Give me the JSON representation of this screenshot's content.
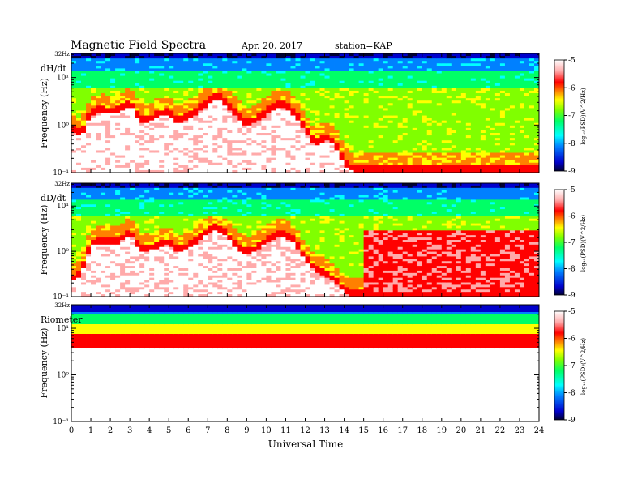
{
  "header": {
    "title": "Magnetic Field Spectra",
    "date": "Apr. 20, 2017",
    "station": "station=KAP"
  },
  "colors": {
    "colormap": [
      "#000033",
      "#0000cc",
      "#0080ff",
      "#00ffff",
      "#00ff66",
      "#80ff00",
      "#ffff00",
      "#ff8000",
      "#ff0000",
      "#ffaaaa",
      "#ffffff"
    ],
    "axis": "#000000",
    "background": "#ffffff"
  },
  "chart_data": [
    {
      "type": "heatmap",
      "panel_label": "dH/dt",
      "ylabel": "Frequency (Hz)",
      "y_scale": "log",
      "ylim": [
        0.1,
        32
      ],
      "y_top_label": "32Hz",
      "y_ticks": [
        {
          "value": 10,
          "label": "10¹"
        },
        {
          "value": 1,
          "label": "10⁰"
        },
        {
          "value": 0.1,
          "label": "10⁻¹"
        }
      ],
      "xlim": [
        0,
        24
      ],
      "colorbar": {
        "label": "log₁₀(PSD)(V^2/Hz)",
        "range": [
          -9,
          -5
        ],
        "ticks": [
          -5,
          -6,
          -7,
          -8,
          -9
        ]
      },
      "quiet_zone_boundary_hz": [
        [
          0.0,
          0.75
        ],
        [
          0.5,
          0.55
        ],
        [
          1.0,
          1.6
        ],
        [
          1.5,
          1.8
        ],
        [
          2.0,
          1.7
        ],
        [
          2.5,
          1.8
        ],
        [
          3.0,
          2.6
        ],
        [
          3.5,
          1.2
        ],
        [
          4.0,
          1.1
        ],
        [
          4.5,
          1.5
        ],
        [
          5.0,
          1.6
        ],
        [
          5.5,
          1.0
        ],
        [
          6.0,
          1.3
        ],
        [
          6.5,
          1.8
        ],
        [
          7.0,
          2.6
        ],
        [
          7.5,
          3.5
        ],
        [
          8.0,
          2.4
        ],
        [
          8.5,
          1.4
        ],
        [
          9.0,
          0.9
        ],
        [
          9.5,
          1.1
        ],
        [
          10.0,
          1.6
        ],
        [
          10.5,
          2.2
        ],
        [
          11.0,
          2.2
        ],
        [
          11.5,
          1.5
        ],
        [
          12.0,
          0.7
        ],
        [
          12.5,
          0.35
        ],
        [
          13.0,
          0.48
        ],
        [
          13.5,
          0.38
        ],
        [
          14.0,
          0.14
        ],
        [
          14.5,
          0.1
        ],
        [
          15,
          0.1
        ],
        [
          24,
          0.1
        ]
      ]
    },
    {
      "type": "heatmap",
      "panel_label": "dD/dt",
      "ylabel": "Frequency (Hz)",
      "y_scale": "log",
      "ylim": [
        0.1,
        32
      ],
      "y_top_label": "32Hz",
      "y_ticks": [
        {
          "value": 10,
          "label": "10¹"
        },
        {
          "value": 1,
          "label": "10⁰"
        },
        {
          "value": 0.1,
          "label": "10⁻¹"
        }
      ],
      "xlim": [
        0,
        24
      ],
      "colorbar": {
        "label": "log₁₀(PSD)(V^2/Hz)",
        "range": [
          -9,
          -5
        ],
        "ticks": [
          -5,
          -6,
          -7,
          -8,
          -9
        ]
      },
      "quiet_zone_boundary_hz": [
        [
          0.0,
          0.2
        ],
        [
          0.5,
          0.3
        ],
        [
          1.0,
          1.3
        ],
        [
          1.5,
          1.5
        ],
        [
          2.0,
          1.4
        ],
        [
          2.5,
          1.5
        ],
        [
          3.0,
          2.4
        ],
        [
          3.5,
          1.0
        ],
        [
          4.0,
          1.0
        ],
        [
          4.5,
          1.2
        ],
        [
          5.0,
          1.4
        ],
        [
          5.5,
          0.9
        ],
        [
          6.0,
          1.1
        ],
        [
          6.5,
          1.6
        ],
        [
          7.0,
          2.4
        ],
        [
          7.5,
          3.0
        ],
        [
          8.0,
          2.0
        ],
        [
          8.5,
          1.1
        ],
        [
          9.0,
          0.8
        ],
        [
          9.5,
          1.0
        ],
        [
          10.0,
          1.5
        ],
        [
          10.5,
          2.0
        ],
        [
          11.0,
          2.0
        ],
        [
          11.5,
          1.4
        ],
        [
          12.0,
          0.6
        ],
        [
          12.5,
          0.35
        ],
        [
          13.0,
          0.3
        ],
        [
          13.5,
          0.2
        ],
        [
          14.0,
          0.12
        ],
        [
          14.5,
          0.1
        ],
        [
          15,
          0.1
        ],
        [
          24,
          0.1
        ]
      ]
    },
    {
      "type": "heatmap",
      "panel_label": "Riometer",
      "ylabel": "Frequency (Hz)",
      "y_scale": "log",
      "ylim": [
        0.1,
        32
      ],
      "y_top_label": "32Hz",
      "y_ticks": [
        {
          "value": 10,
          "label": "10¹"
        },
        {
          "value": 1,
          "label": "10⁰"
        },
        {
          "value": 0.1,
          "label": "10⁻¹"
        }
      ],
      "xlim": [
        0,
        24
      ],
      "colorbar": {
        "label": "log₁₀(PSD)(V^2/Hz)",
        "range": [
          -9,
          -5
        ],
        "ticks": [
          -5,
          -6,
          -7,
          -8,
          -9
        ]
      },
      "quiet_zone_boundary_hz": [
        [
          0,
          3.5
        ],
        [
          24,
          3.5
        ]
      ]
    }
  ],
  "x_axis": {
    "xlabel": "Universal Time",
    "ticks": [
      "0",
      "1",
      "2",
      "3",
      "4",
      "5",
      "6",
      "7",
      "8",
      "9",
      "10",
      "11",
      "12",
      "13",
      "14",
      "15",
      "16",
      "17",
      "18",
      "19",
      "20",
      "21",
      "22",
      "23",
      "24"
    ]
  }
}
